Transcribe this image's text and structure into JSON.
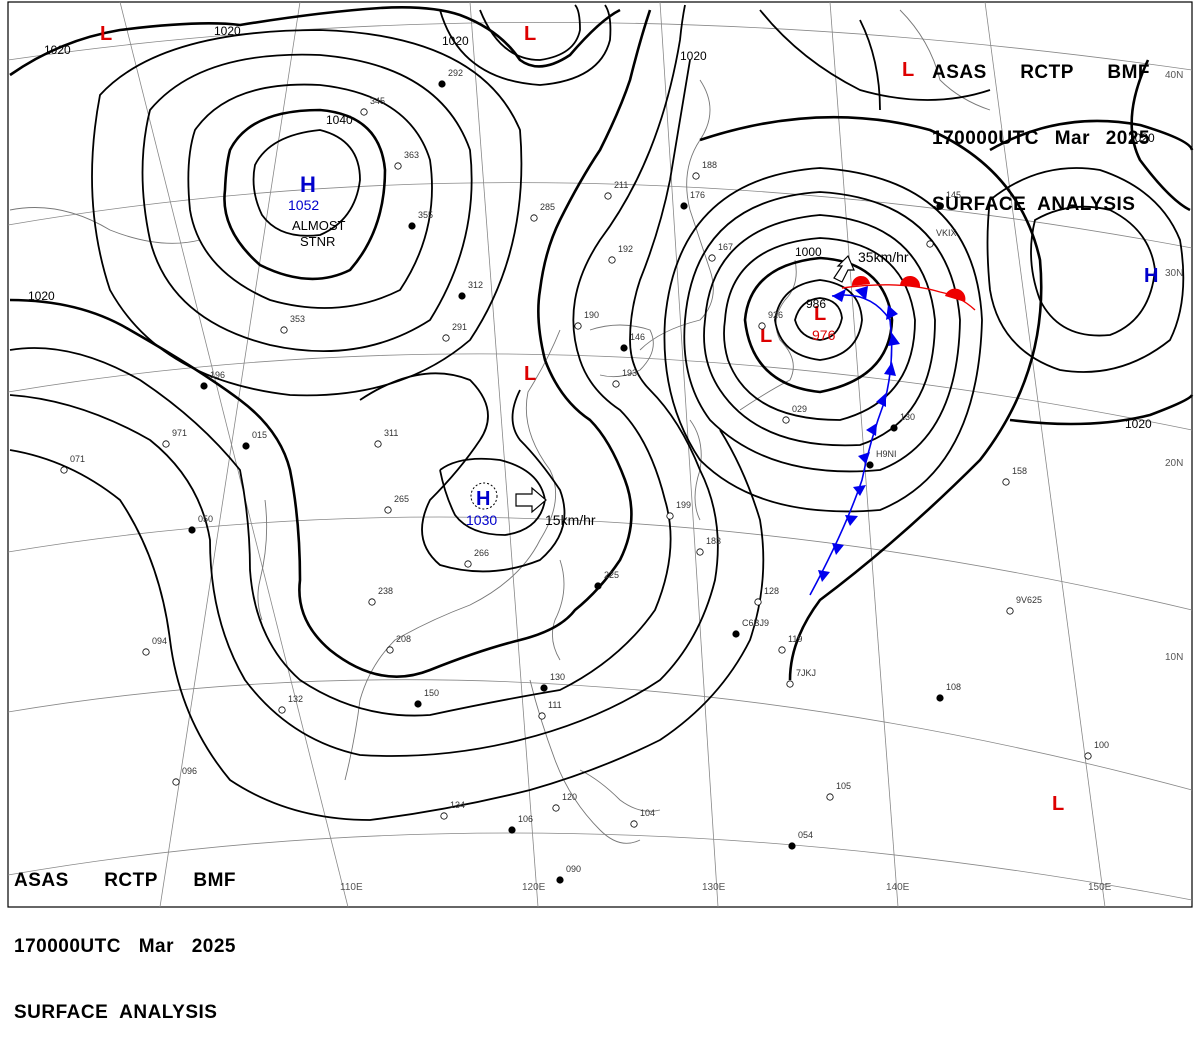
{
  "header": {
    "line1_parts": [
      "ASAS",
      "RCTP",
      "BMF"
    ],
    "line2_parts": [
      "170000UTC",
      "Mar",
      "2025"
    ],
    "line3": "SURFACE  ANALYSIS"
  },
  "footer": {
    "line1_parts": [
      "ASAS",
      "RCTP",
      "BMF"
    ],
    "line2_parts": [
      "170000UTC",
      "Mar",
      "2025"
    ],
    "line3": "SURFACE  ANALYSIS"
  },
  "longitude_labels": [
    "110E",
    "120E",
    "130E",
    "140E",
    "150E"
  ],
  "latitude_labels": [
    "40N",
    "30N",
    "20N",
    "10N"
  ],
  "isobar_labels": [
    "1020",
    "1020",
    "1020",
    "1020",
    "1020",
    "1040",
    "1000",
    "1020",
    "1020"
  ],
  "systems": {
    "high_main": {
      "symbol": "H",
      "pressure": "1052",
      "note_line1": "ALMOST",
      "note_line2": "STNR"
    },
    "high_south": {
      "symbol": "H",
      "pressure": "1030",
      "speed": "15km/hr"
    },
    "high_east": {
      "symbol": "H"
    },
    "low_main": {
      "symbol": "L",
      "pressure": "976",
      "center_label": "986",
      "speed": "35km/hr"
    },
    "low_symbols": [
      "L",
      "L",
      "L",
      "L",
      "L",
      "L"
    ]
  },
  "station_labels": [
    {
      "t": "292"
    },
    {
      "t": "345"
    },
    {
      "t": "363"
    },
    {
      "t": "355"
    },
    {
      "t": "285"
    },
    {
      "t": "211"
    },
    {
      "t": "176"
    },
    {
      "t": "188"
    },
    {
      "t": "192"
    },
    {
      "t": "312"
    },
    {
      "t": "291"
    },
    {
      "t": "190"
    },
    {
      "t": "146"
    },
    {
      "t": "193"
    },
    {
      "t": "353"
    },
    {
      "t": "196"
    },
    {
      "t": "071"
    },
    {
      "t": "971"
    },
    {
      "t": "015"
    },
    {
      "t": "311"
    },
    {
      "t": "265"
    },
    {
      "t": "050"
    },
    {
      "t": "266"
    },
    {
      "t": "238"
    },
    {
      "t": "225"
    },
    {
      "t": "208"
    },
    {
      "t": "094"
    },
    {
      "t": "150"
    },
    {
      "t": "132"
    },
    {
      "t": "096"
    },
    {
      "t": "130"
    },
    {
      "t": "111"
    },
    {
      "t": "134"
    },
    {
      "t": "106"
    },
    {
      "t": "120"
    },
    {
      "t": "104"
    },
    {
      "t": "090"
    },
    {
      "t": "128"
    },
    {
      "t": "119"
    },
    {
      "t": "108"
    },
    {
      "t": "100"
    },
    {
      "t": "105"
    },
    {
      "t": "054"
    },
    {
      "t": "199"
    },
    {
      "t": "183"
    },
    {
      "t": "145"
    },
    {
      "t": "158"
    },
    {
      "t": "029"
    },
    {
      "t": "130"
    },
    {
      "t": "926"
    },
    {
      "t": "167"
    },
    {
      "t": "C6BJ9"
    },
    {
      "t": "7JKJ"
    },
    {
      "t": "9V625"
    },
    {
      "t": "H9NI"
    },
    {
      "t": "VKIX"
    }
  ],
  "colors": {
    "isobar": "#000000",
    "grid": "#808080",
    "coast": "#7a7a7a",
    "high": "#0000cc",
    "low": "#dd0000",
    "cold_front": "#0000ee",
    "warm_front": "#ee0000"
  }
}
